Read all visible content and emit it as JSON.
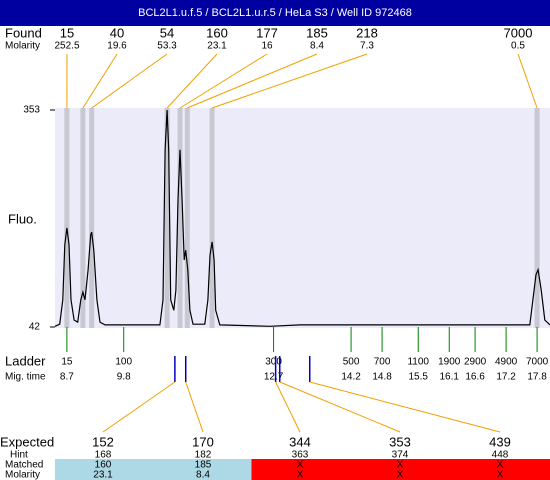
{
  "chart_data": {
    "type": "line",
    "title": "BCL2L1.u.f.5 / BCL2L1.u.r.5 / HeLa S3 / Well ID 972468",
    "ylabel": "Fluo.",
    "ylim": [
      42,
      353
    ],
    "yticks": [
      42,
      353
    ],
    "xlim": [
      8.47,
      18.05
    ],
    "x": [
      8.47,
      8.56,
      8.62,
      8.66,
      8.7,
      8.74,
      8.78,
      8.84,
      8.91,
      8.97,
      9.01,
      9.05,
      9.11,
      9.16,
      9.18,
      9.22,
      9.28,
      9.34,
      9.44,
      10.5,
      10.56,
      10.6,
      10.64,
      10.67,
      10.71,
      10.77,
      10.81,
      10.85,
      10.89,
      10.93,
      10.97,
      11.0,
      11.04,
      11.08,
      11.14,
      11.37,
      11.43,
      11.47,
      11.51,
      11.55,
      11.58,
      11.66,
      12.63,
      13.21,
      17.66,
      17.72,
      17.78,
      17.82,
      17.88,
      17.95,
      18.05
    ],
    "series": [
      {
        "color": "#000000",
        "values": [
          43,
          46,
          81,
          160,
          184,
          160,
          81,
          52,
          49,
          81,
          92,
          81,
          124,
          174,
          178,
          152,
          81,
          49,
          45,
          45,
          81,
          296,
          353,
          296,
          81,
          66,
          95,
          224,
          296,
          224,
          138,
          152,
          124,
          66,
          46,
          46,
          81,
          145,
          164,
          138,
          66,
          45,
          43,
          45,
          45,
          81,
          117,
          124,
          95,
          52,
          45
        ]
      }
    ]
  },
  "found": {
    "label": "Found",
    "sublabel": "Molarity",
    "color": "#f0a000",
    "sizes": [
      15,
      40,
      54,
      160,
      177,
      185,
      218,
      7000
    ],
    "molarity": [
      252.5,
      19.6,
      53.3,
      23.1,
      16,
      8.4,
      7.3,
      0.5
    ],
    "times": [
      8.7,
      9.01,
      9.18,
      10.64,
      10.89,
      11.03,
      11.51,
      17.8
    ]
  },
  "ladder": {
    "label": "Ladder",
    "sublabel": "Mig. time",
    "color": "#008000",
    "sizes": [
      15,
      100,
      300,
      500,
      700,
      1100,
      1900,
      2900,
      4900,
      7000
    ],
    "times": [
      8.7,
      9.8,
      12.7,
      14.2,
      14.8,
      15.5,
      16.1,
      16.6,
      17.2,
      17.8
    ]
  },
  "expected": {
    "label": "Expected",
    "hint_label": "Hint",
    "matched_label": "Matched",
    "molarity_label": "Molarity",
    "sizes": [
      152,
      170,
      344,
      353,
      439
    ],
    "hint": [
      168,
      182,
      363,
      374,
      448
    ],
    "matched": [
      160,
      185,
      "X",
      "X",
      "X"
    ],
    "molarity": [
      23.1,
      8.4,
      "X",
      "X",
      "X"
    ],
    "times": [
      10.79,
      11.0,
      12.74,
      12.82,
      13.4
    ]
  }
}
